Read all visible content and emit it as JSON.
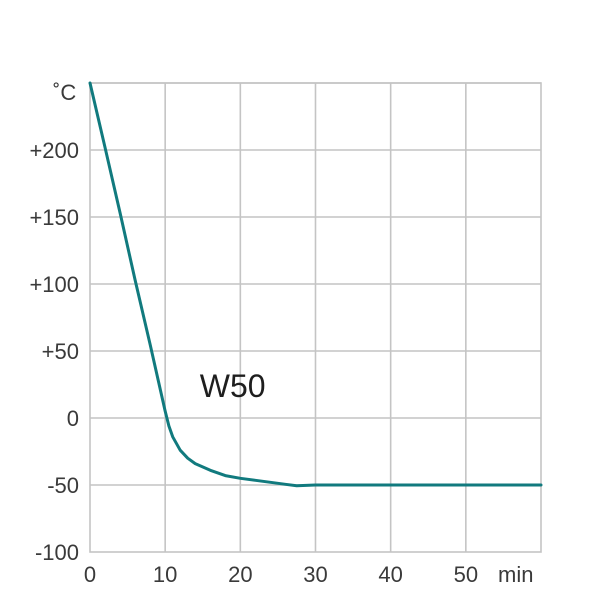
{
  "chart_data": {
    "type": "line",
    "title": "",
    "xlabel": "",
    "ylabel": "",
    "y_unit": "˚C",
    "x_unit": "min",
    "xlim": [
      0,
      60
    ],
    "ylim": [
      -100,
      250
    ],
    "grid": true,
    "x_ticks": [
      0,
      10,
      20,
      30,
      40,
      50
    ],
    "x_tick_labels": [
      "0",
      "10",
      "20",
      "30",
      "40",
      "50"
    ],
    "y_ticks": [
      -100,
      -50,
      0,
      50,
      100,
      150,
      200
    ],
    "y_tick_labels": [
      "-100",
      "-50",
      "0",
      "+50",
      "+100",
      "+150",
      "+200"
    ],
    "series": [
      {
        "name": "W50",
        "color": "#117a7e",
        "x": [
          0,
          2,
          4,
          6,
          8,
          10,
          10.5,
          11,
          12,
          13,
          14,
          16,
          18,
          20,
          22,
          24,
          26,
          27.5,
          30,
          35,
          40,
          45,
          50,
          55,
          60
        ],
        "y": [
          250,
          202,
          153,
          103,
          55,
          5,
          -6,
          -14,
          -24,
          -30,
          -34,
          -39,
          -43,
          -45,
          -46.5,
          -48,
          -49.5,
          -50.5,
          -50,
          -50,
          -50,
          -50,
          -50,
          -50,
          -50
        ]
      }
    ],
    "series_label": {
      "text": "W50",
      "x": 15,
      "y": 20
    }
  },
  "colors": {
    "grid": "#c4c4c4",
    "line": "#117a7e",
    "text": "#3a3a3a"
  }
}
